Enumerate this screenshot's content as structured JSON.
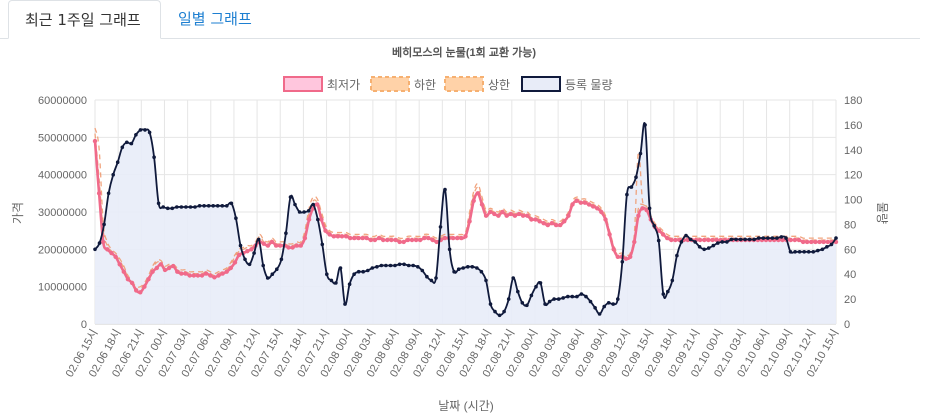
{
  "tabs": [
    {
      "label": "최근 1주일 그래프",
      "active": true
    },
    {
      "label": "일별 그래프",
      "active": false
    }
  ],
  "chart_data": {
    "type": "line",
    "title": "베히모스의 눈물(1회 교환 가능)",
    "xlabel": "날짜 (시간)",
    "ylabel": "가격",
    "y2label": "물량",
    "ylim": [
      0,
      60000000
    ],
    "y2lim": [
      0,
      180
    ],
    "yticks": [
      "60000000",
      "50000000",
      "40000000",
      "30000000",
      "20000000",
      "10000000",
      "0"
    ],
    "y2ticks": [
      "180",
      "160",
      "140",
      "120",
      "100",
      "80",
      "60",
      "40",
      "20",
      "0"
    ],
    "x_tick_labels": [
      "02.06 15시",
      "02.06 18시",
      "02.06 21시",
      "02.07 00시",
      "02.07 03시",
      "02.07 06시",
      "02.07 09시",
      "02.07 12시",
      "02.07 15시",
      "02.07 18시",
      "02.07 21시",
      "02.08 00시",
      "02.08 03시",
      "02.08 06시",
      "02.08 09시",
      "02.08 12시",
      "02.08 15시",
      "02.08 18시",
      "02.08 21시",
      "02.09 00시",
      "02.09 03시",
      "02.09 06시",
      "02.09 09시",
      "02.09 12시",
      "02.09 15시",
      "02.09 18시",
      "02.09 21시",
      "02.10 00시",
      "02.10 03시",
      "02.10 06시",
      "02.10 09시",
      "02.10 12시",
      "02.10 15시"
    ],
    "legend": [
      {
        "label": "최저가",
        "color": "#f06a8a",
        "fill": "#ffc6dd"
      },
      {
        "label": "하한",
        "color": "#f6b071",
        "fill": "#ffd2a8"
      },
      {
        "label": "상한",
        "color": "#f6b071",
        "fill": "#ffd2a8"
      },
      {
        "label": "등록 물량",
        "color": "#101a3c",
        "fill": "#e8ecf8"
      }
    ],
    "colors": {
      "lowest": "#f06a8a",
      "bound": "#f09a70",
      "volume": "#101a3c",
      "volume_fill": "#e8ecf8",
      "grid": "#e6e6e6",
      "axis_text": "#666666"
    },
    "series": [
      {
        "name": "최저가",
        "axis": "left",
        "values": [
          49000000,
          35000000,
          22000000,
          20000000,
          19000000,
          18000000,
          16000000,
          14000000,
          12000000,
          11000000,
          9000000,
          8500000,
          10000000,
          12000000,
          14000000,
          15000000,
          16000000,
          14500000,
          15000000,
          15500000,
          14000000,
          13500000,
          13500000,
          13000000,
          13000000,
          13000000,
          13000000,
          13500000,
          13000000,
          12500000,
          13000000,
          13500000,
          14000000,
          15000000,
          16500000,
          18500000,
          19000000,
          19500000,
          20000000,
          21000000,
          22000000,
          21500000,
          21000000,
          22000000,
          21000000,
          21000000,
          21000000,
          20500000,
          20500000,
          21000000,
          21000000,
          23000000,
          28000000,
          31000000,
          32000000,
          28000000,
          25000000,
          24000000,
          23500000,
          23500000,
          23500000,
          23500000,
          23000000,
          23000000,
          23000000,
          23000000,
          23000000,
          22500000,
          22500000,
          23000000,
          22500000,
          22500000,
          22500000,
          22500000,
          22000000,
          22000000,
          22500000,
          22500000,
          22500000,
          22500000,
          23000000,
          23000000,
          22500000,
          22000000,
          22500000,
          23000000,
          23000000,
          23000000,
          23000000,
          23000000,
          23500000,
          27500000,
          33000000,
          35000000,
          32000000,
          29000000,
          30000000,
          29500000,
          29000000,
          30000000,
          29000000,
          29500000,
          29000000,
          29500000,
          29000000,
          29000000,
          28000000,
          28000000,
          27500000,
          27000000,
          26500000,
          27000000,
          26500000,
          26500000,
          27500000,
          29000000,
          32000000,
          33000000,
          32500000,
          32500000,
          32000000,
          31500000,
          31000000,
          30000000,
          28000000,
          24000000,
          20000000,
          18000000,
          18000000,
          17500000,
          18000000,
          22000000,
          29000000,
          31000000,
          30500000,
          28000000,
          26000000,
          25000000,
          24000000,
          23000000,
          22500000,
          22500000,
          22500000,
          22500000,
          22500000,
          22500000,
          22500000,
          22500000,
          22500000,
          22500000,
          22500000,
          22500000,
          22500000,
          22500000,
          22500000,
          22500000,
          22500000,
          22500000,
          22500000,
          22500000,
          22500000,
          22500000,
          22500000,
          22500000,
          22500000,
          22500000,
          22500000,
          22500000,
          22500000,
          22500000,
          22500000,
          22500000,
          22000000,
          22000000,
          22000000,
          22000000,
          22000000,
          22000000,
          22000000,
          22000000,
          22000000
        ]
      },
      {
        "name": "하한",
        "axis": "left",
        "values": [
          51000000,
          39000000,
          25000000,
          21000000,
          19500000,
          18500000,
          17000000,
          15000000,
          12500000,
          11000000,
          9500000,
          9500000,
          10500000,
          12500000,
          15000000,
          16500000,
          16500000,
          15000000,
          15500000,
          15500000,
          14500000,
          14000000,
          14000000,
          13500000,
          13500000,
          13500000,
          13500000,
          14000000,
          13500000,
          13000000,
          13500000,
          14000000,
          14500000,
          16000000,
          18000000,
          19500000,
          20000000,
          20500000,
          20500000,
          21500000,
          23500000,
          22000000,
          21500000,
          22500000,
          21500000,
          21500000,
          21500000,
          21000000,
          21000000,
          21500000,
          21500000,
          24000000,
          30000000,
          33000000,
          32500000,
          29000000,
          26000000,
          24500000,
          24000000,
          24000000,
          24000000,
          24000000,
          23500000,
          23500000,
          23500000,
          23500000,
          23500000,
          23000000,
          23000000,
          23500000,
          23000000,
          23000000,
          23000000,
          23000000,
          22500000,
          22500000,
          23000000,
          23000000,
          23000000,
          23000000,
          23500000,
          23500000,
          23000000,
          22500000,
          23000000,
          23500000,
          23500000,
          23500000,
          23500000,
          23500000,
          24000000,
          29000000,
          34500000,
          36500000,
          33000000,
          30000000,
          30500000,
          30000000,
          29500000,
          30500000,
          29500000,
          30000000,
          29500000,
          30000000,
          29500000,
          29500000,
          28500000,
          28500000,
          28000000,
          27500000,
          27000000,
          27500000,
          27000000,
          27000000,
          28000000,
          29500000,
          32500000,
          33500000,
          33000000,
          33000000,
          32500000,
          32000000,
          31500000,
          30500000,
          28500000,
          24500000,
          20500000,
          18500000,
          18500000,
          18000000,
          18500000,
          23000000,
          31000000,
          32000000,
          31000000,
          28500000,
          26500000,
          25500000,
          24500000,
          23500000,
          23000000,
          23000000,
          23000000,
          23000000,
          23000000,
          23000000,
          23000000,
          23000000,
          23000000,
          23000000,
          23000000,
          23000000,
          23000000,
          23000000,
          23000000,
          23000000,
          23000000,
          23000000,
          23000000,
          23000000,
          23000000,
          23000000,
          23000000,
          23000000,
          23000000,
          23000000,
          23000000,
          23000000,
          23000000,
          23000000,
          23000000,
          23000000,
          22500000,
          22500000,
          22500000,
          22500000,
          22500000,
          22500000,
          22500000,
          22500000,
          22500000
        ]
      },
      {
        "name": "상한",
        "axis": "left",
        "values": [
          52500000,
          47000000,
          27000000,
          22000000,
          20000000,
          19000000,
          17500000,
          15500000,
          13000000,
          11500000,
          10000000,
          10000000,
          11000000,
          13000000,
          15500000,
          17000000,
          17000000,
          15500000,
          16000000,
          16000000,
          15000000,
          14500000,
          14500000,
          14000000,
          14000000,
          14000000,
          14000000,
          14500000,
          14000000,
          13500000,
          14000000,
          14500000,
          15000000,
          16500000,
          18500000,
          20000000,
          20500000,
          21000000,
          21000000,
          22000000,
          24000000,
          22500000,
          22000000,
          23000000,
          22000000,
          22000000,
          22000000,
          21500000,
          21500000,
          22000000,
          22000000,
          25000000,
          31000000,
          34000000,
          33500000,
          30000000,
          26500000,
          25000000,
          24500000,
          24500000,
          24500000,
          24500000,
          24000000,
          24000000,
          24000000,
          24000000,
          24000000,
          23500000,
          23500000,
          24000000,
          23500000,
          23500000,
          23500000,
          23500000,
          23000000,
          23000000,
          23500000,
          23500000,
          23500000,
          23500000,
          24000000,
          24000000,
          23500000,
          23000000,
          23500000,
          24000000,
          24000000,
          24000000,
          24000000,
          24000000,
          24500000,
          30000000,
          35500000,
          37500000,
          34000000,
          30500000,
          31000000,
          30500000,
          30000000,
          31000000,
          30000000,
          30500000,
          30000000,
          30500000,
          30000000,
          30000000,
          29000000,
          29000000,
          28500000,
          28000000,
          27500000,
          28000000,
          27500000,
          27500000,
          28500000,
          30000000,
          33000000,
          34000000,
          33500000,
          33500000,
          33000000,
          32500000,
          32000000,
          31000000,
          29000000,
          25000000,
          21000000,
          19000000,
          19000000,
          18500000,
          19000000,
          24000000,
          46000000,
          33000000,
          31500000,
          29000000,
          27000000,
          26000000,
          25000000,
          24000000,
          23500000,
          23500000,
          23500000,
          23500000,
          23500000,
          23500000,
          23500000,
          23500000,
          23500000,
          23500000,
          23500000,
          23500000,
          23500000,
          23500000,
          23500000,
          23500000,
          23500000,
          23500000,
          23500000,
          23500000,
          23500000,
          23500000,
          23500000,
          23500000,
          23500000,
          23500000,
          23500000,
          23500000,
          23500000,
          23500000,
          23500000,
          23500000,
          23000000,
          23000000,
          23000000,
          23000000,
          23000000,
          23000000,
          23000000,
          23000000,
          23000000
        ]
      },
      {
        "name": "등록 물량",
        "axis": "right",
        "values": [
          60,
          65,
          80,
          105,
          120,
          130,
          142,
          146,
          145,
          152,
          156,
          156,
          154,
          134,
          97,
          94,
          93,
          93,
          94,
          94,
          94,
          94,
          94,
          95,
          95,
          95,
          95,
          95,
          95,
          95,
          97,
          85,
          63,
          52,
          48,
          57,
          68,
          47,
          37,
          40,
          44,
          52,
          73,
          102,
          96,
          90,
          90,
          91,
          96,
          84,
          64,
          40,
          35,
          33,
          45,
          16,
          32,
          40,
          42,
          42,
          43,
          45,
          46,
          47,
          47,
          47,
          47,
          48,
          48,
          47,
          47,
          46,
          43,
          38,
          35,
          37,
          78,
          108,
          60,
          42,
          44,
          45,
          46,
          46,
          45,
          42,
          35,
          16,
          10,
          7,
          10,
          20,
          37,
          26,
          17,
          15,
          23,
          30,
          33,
          16,
          18,
          20,
          20,
          21,
          22,
          22,
          22,
          24,
          22,
          18,
          13,
          8,
          14,
          17,
          16,
          20,
          50,
          104,
          110,
          118,
          137,
          160,
          93,
          79,
          67,
          24,
          26,
          35,
          55,
          66,
          71,
          68,
          66,
          62,
          60,
          61,
          63,
          65,
          66,
          66,
          68,
          68,
          68,
          68,
          68,
          68,
          69,
          69,
          69,
          69,
          69,
          70,
          69,
          58,
          58,
          58,
          58,
          58,
          58,
          59,
          60,
          62,
          64,
          69
        ]
      }
    ]
  }
}
